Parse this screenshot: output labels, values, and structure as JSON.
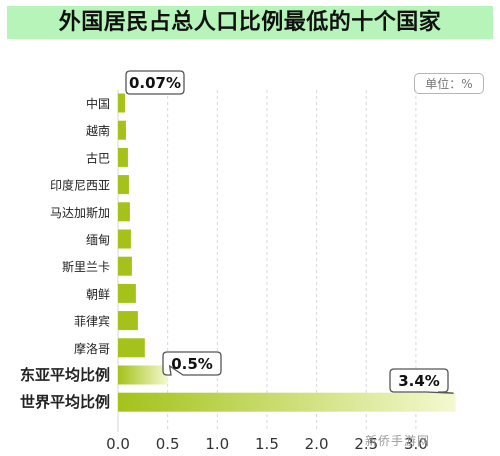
{
  "title": "外国居民占总人口比例最低的十个国家",
  "unit_label": "单位：%",
  "watermark": "新侨手游网",
  "colors": {
    "title_bg": "#b6f4b9",
    "bar_light": "#f4f9d0",
    "bar_dark": "#a4c21a",
    "grid": "#d7d7d7",
    "callout_border": "#555555"
  },
  "chart_data": {
    "type": "bar",
    "orientation": "horizontal",
    "title": "外国居民占总人口比例最低的十个国家",
    "unit": "单位：%",
    "xlim": [
      0,
      3.5
    ],
    "xticks": [
      "0.0",
      "0.5",
      "1.0",
      "1.5",
      "2.0",
      "2.5",
      "3.0"
    ],
    "grid": true,
    "categories": [
      "中国",
      "越南",
      "古巴",
      "印度尼西亚",
      "马达加斯加",
      "缅甸",
      "斯里兰卡",
      "朝鲜",
      "菲律宾",
      "摩洛哥",
      "东亚平均比例",
      "世界平均比例"
    ],
    "values": [
      0.07,
      0.08,
      0.1,
      0.11,
      0.12,
      0.13,
      0.14,
      0.18,
      0.2,
      0.27,
      0.5,
      3.4
    ],
    "emphasized": [
      "东亚平均比例",
      "世界平均比例"
    ],
    "annotations": [
      {
        "category": "中国",
        "text": "0.07%"
      },
      {
        "category": "东亚平均比例",
        "text": "0.5%"
      },
      {
        "category": "世界平均比例",
        "text": "3.4%"
      }
    ]
  }
}
